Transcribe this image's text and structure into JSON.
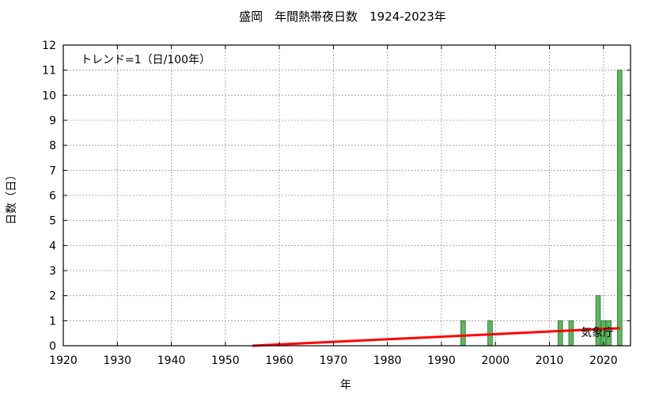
{
  "chart_data": {
    "type": "bar",
    "title": "盛岡　年間熱帯夜日数　1924-2023年",
    "xlabel": "年",
    "ylabel": "日数（日）",
    "trend_label": "トレンド=1（日/100年）",
    "source_label": "気象庁",
    "xlim": [
      1920,
      2025
    ],
    "ylim": [
      0,
      12
    ],
    "x_ticks": [
      1920,
      1930,
      1940,
      1950,
      1960,
      1970,
      1980,
      1990,
      2000,
      2010,
      2020
    ],
    "y_ticks": [
      0,
      1,
      2,
      3,
      4,
      5,
      6,
      7,
      8,
      9,
      10,
      11,
      12
    ],
    "grid": true,
    "bar_color": "#5cb85c",
    "trend_color": "#ff0000",
    "series": [
      {
        "x": [
          1994,
          1999,
          2012,
          2014,
          2019,
          2020,
          2021,
          2023
        ],
        "values": [
          1,
          1,
          1,
          1,
          2,
          1,
          1,
          11
        ]
      }
    ],
    "trend_line": {
      "x": [
        1955,
        2023
      ],
      "y": [
        0.0,
        0.7
      ]
    }
  }
}
